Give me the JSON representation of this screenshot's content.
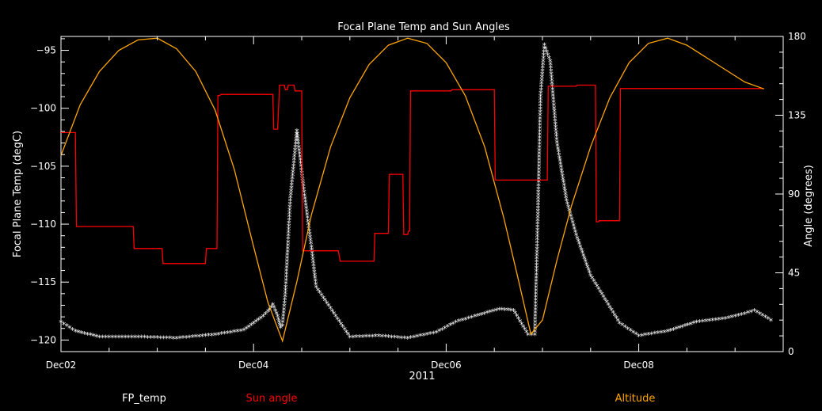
{
  "chart_data": {
    "type": "line",
    "title": "Focal Plane Temp and Sun Angles",
    "xlabel": "2011",
    "ylabel_left": "Focal Plane Temp (degC)",
    "ylabel_right": "Angle (degrees)",
    "x_ticks": [
      "Dec02",
      "Dec04",
      "Dec06",
      "Dec08"
    ],
    "xlim": [
      2.0,
      9.5
    ],
    "ylim_left": [
      -121,
      -93.8
    ],
    "ylim_right": [
      0,
      180
    ],
    "y_ticks_left": [
      "−95",
      "−100",
      "−105",
      "−110",
      "−115",
      "−120"
    ],
    "y_ticks_left_values": [
      -95,
      -100,
      -105,
      -110,
      -115,
      -120
    ],
    "y_ticks_right": [
      "180",
      "135",
      "90",
      "45",
      "0"
    ],
    "y_ticks_right_values": [
      180,
      135,
      90,
      45,
      0
    ],
    "legend": {
      "fp_temp": "FP_temp",
      "sun_angle": "Sun angle",
      "altitude": "Altitude"
    },
    "colors": {
      "fp_temp": "#ffffff",
      "sun_angle": "#ff0000",
      "altitude": "#ffa500",
      "axes": "#ffffff",
      "background": "#000000"
    },
    "series": [
      {
        "name": "FP_temp",
        "axis": "left",
        "marker": "star",
        "x": [
          2.0,
          2.15,
          2.4,
          2.8,
          3.2,
          3.6,
          3.9,
          4.05,
          4.1,
          4.15,
          4.2,
          4.25,
          4.28,
          4.3,
          4.33,
          4.38,
          4.45,
          4.52,
          4.6,
          4.65,
          5.0,
          5.3,
          5.6,
          5.9,
          6.1,
          6.3,
          6.55,
          6.7,
          6.85,
          6.92,
          6.95,
          6.98,
          7.02,
          7.08,
          7.15,
          7.25,
          7.35,
          7.5,
          7.8,
          8.0,
          8.3,
          8.6,
          8.9,
          9.1,
          9.2,
          9.4
        ],
        "y": [
          -118.5,
          -119.3,
          -119.8,
          -119.8,
          -119.9,
          -119.6,
          -119.2,
          -118.3,
          -118.0,
          -117.6,
          -117.0,
          -118.0,
          -119.0,
          -118.8,
          -116.0,
          -108.0,
          -102.0,
          -107.0,
          -112.0,
          -115.5,
          -119.8,
          -119.7,
          -119.9,
          -119.4,
          -118.5,
          -118.0,
          -117.4,
          -117.5,
          -119.6,
          -119.6,
          -110.0,
          -99.0,
          -94.6,
          -96.0,
          -103.0,
          -108.0,
          -111.0,
          -114.5,
          -118.6,
          -119.7,
          -119.3,
          -118.5,
          -118.2,
          -117.8,
          -117.5,
          -118.5
        ]
      },
      {
        "name": "Sun angle",
        "axis": "left",
        "marker": "line",
        "x": [
          2.0,
          2.15,
          2.16,
          2.75,
          2.76,
          3.05,
          3.06,
          3.5,
          3.51,
          3.62,
          3.63,
          3.65,
          3.66,
          4.2,
          4.21,
          4.25,
          4.27,
          4.32,
          4.33,
          4.35,
          4.36,
          4.42,
          4.43,
          4.5,
          4.51,
          4.88,
          4.9,
          4.92,
          4.93,
          5.25,
          5.26,
          5.4,
          5.41,
          5.55,
          5.56,
          5.6,
          5.61,
          5.62,
          5.63,
          6.05,
          6.06,
          6.5,
          6.51,
          7.05,
          7.06,
          7.35,
          7.36,
          7.55,
          7.56,
          7.58,
          7.59,
          7.8,
          7.81,
          9.3
        ],
        "y": [
          -102.1,
          -102.1,
          -110.2,
          -110.2,
          -112.1,
          -112.1,
          -113.4,
          -113.4,
          -112.1,
          -112.1,
          -98.9,
          -98.9,
          -98.8,
          -98.8,
          -101.8,
          -101.8,
          -98.0,
          -98.0,
          -98.4,
          -98.4,
          -98.0,
          -98.0,
          -98.5,
          -98.5,
          -112.3,
          -112.3,
          -113.2,
          -113.2,
          -113.2,
          -113.2,
          -110.8,
          -110.8,
          -105.7,
          -105.7,
          -110.9,
          -110.9,
          -110.6,
          -110.6,
          -98.5,
          -98.5,
          -98.4,
          -98.4,
          -106.2,
          -106.2,
          -98.1,
          -98.1,
          -98.0,
          -98.0,
          -109.8,
          -109.8,
          -109.7,
          -109.7,
          -98.3,
          -98.3
        ]
      },
      {
        "name": "Altitude",
        "axis": "right",
        "marker": "line",
        "x": [
          2.0,
          2.2,
          2.4,
          2.6,
          2.8,
          3.0,
          3.2,
          3.4,
          3.6,
          3.8,
          4.0,
          4.15,
          4.3,
          4.45,
          4.6,
          4.8,
          5.0,
          5.2,
          5.4,
          5.6,
          5.8,
          6.0,
          6.2,
          6.4,
          6.6,
          6.75,
          6.88,
          7.0,
          7.15,
          7.3,
          7.5,
          7.7,
          7.9,
          8.1,
          8.3,
          8.5,
          8.7,
          8.9,
          9.1,
          9.3
        ],
        "y": [
          112,
          141,
          160,
          172,
          178,
          179,
          173,
          160,
          138,
          104,
          60,
          28,
          6,
          40,
          78,
          117,
          145,
          164,
          175,
          179,
          176,
          165,
          146,
          117,
          76,
          41,
          10,
          18,
          52,
          83,
          117,
          145,
          165,
          176,
          179,
          175,
          168,
          161,
          154,
          150
        ]
      }
    ]
  }
}
